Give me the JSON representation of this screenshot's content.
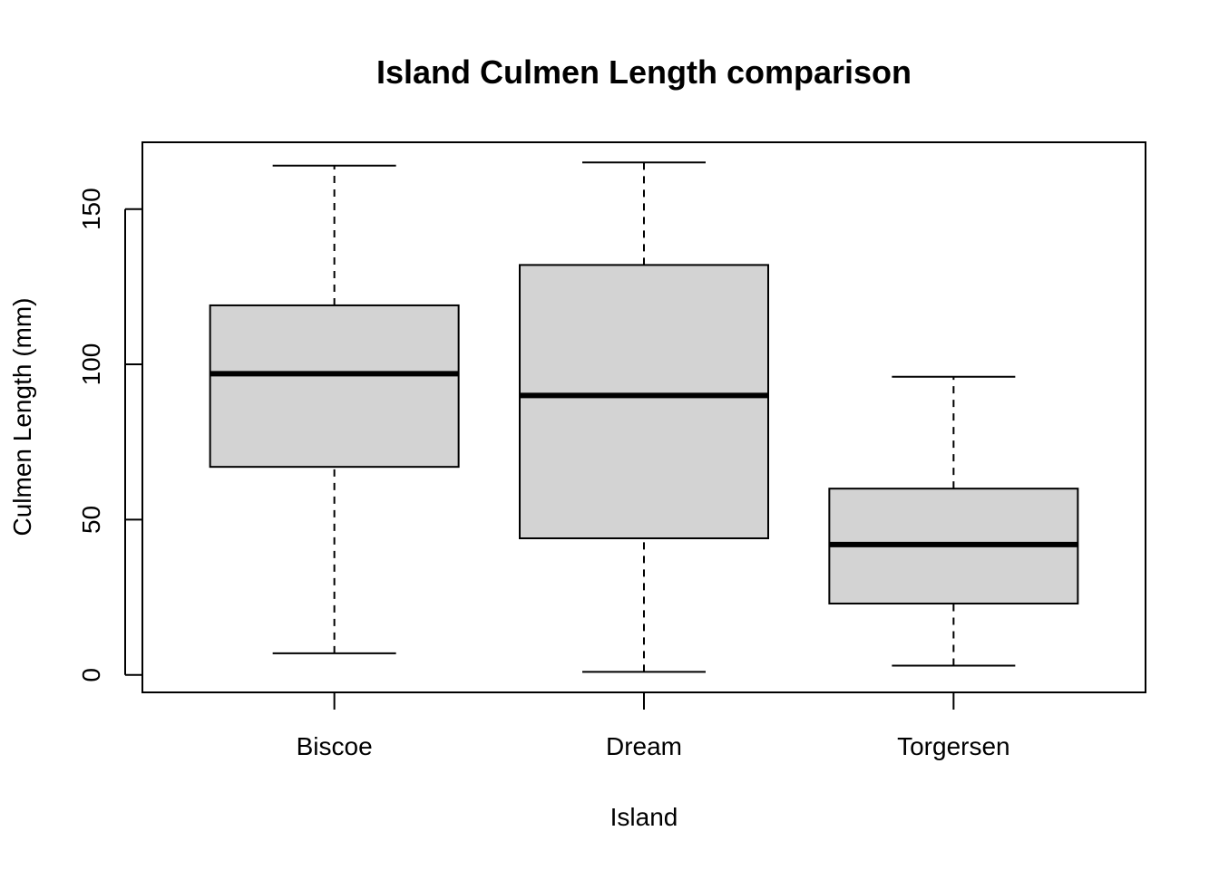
{
  "chart_data": {
    "type": "boxplot",
    "title": "Island  Culmen Length comparison",
    "xlabel": "Island",
    "ylabel": "Culmen Length (mm)",
    "categories": [
      "Biscoe",
      "Dream",
      "Torgersen"
    ],
    "boxes": [
      {
        "category": "Biscoe",
        "min": 7,
        "q1": 67,
        "median": 97,
        "q3": 119,
        "max": 164
      },
      {
        "category": "Dream",
        "min": 1,
        "q1": 44,
        "median": 90,
        "q3": 132,
        "max": 165
      },
      {
        "category": "Torgersen",
        "min": 3,
        "q1": 23,
        "median": 42,
        "q3": 60,
        "max": 96
      }
    ],
    "yticks": [
      0,
      50,
      100,
      150
    ],
    "ylim": [
      -5.6,
      171.5
    ],
    "box_fill": "#d3d3d3",
    "line_color": "#000000",
    "grid": false,
    "legend": "none"
  }
}
